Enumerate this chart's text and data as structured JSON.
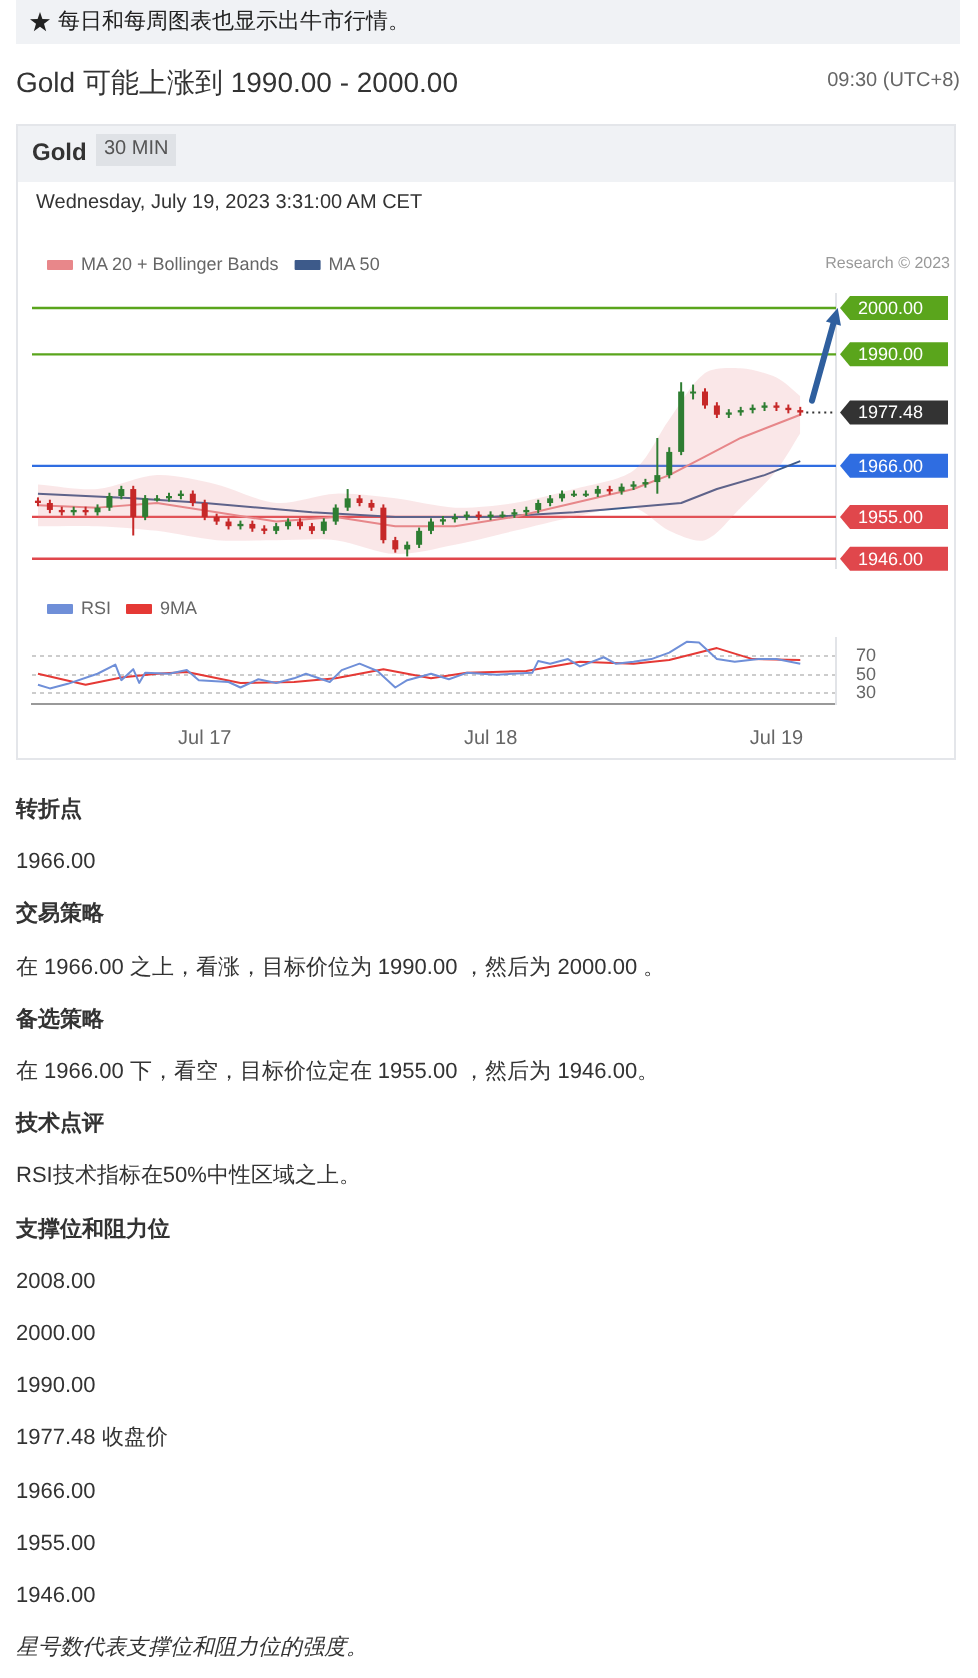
{
  "chart_data": [
    {
      "type": "candlestick",
      "title": "Gold 可能上涨到 1990.00 - 2000.00",
      "subtitle": "每日和每周图表也显示出牛市行情。",
      "annotations": [
        "09:30 (UTC+8)",
        "Gold",
        "30 MIN",
        "Wednesday, July 19, 2023 3:31:00 AM CET",
        "Research © 2023"
      ],
      "x": [
        "2023-07-16T10:00",
        "2023-07-16T11:00",
        "2023-07-16T12:00",
        "2023-07-16T13:00",
        "2023-07-16T14:00",
        "2023-07-16T15:00",
        "2023-07-16T16:00",
        "2023-07-16T17:00",
        "2023-07-16T18:00",
        "2023-07-16T19:00",
        "2023-07-16T20:00",
        "2023-07-16T21:00",
        "2023-07-16T22:00",
        "2023-07-16T23:00",
        "2023-07-17T00:00",
        "2023-07-17T01:00",
        "2023-07-17T02:00",
        "2023-07-17T03:00",
        "2023-07-17T04:00",
        "2023-07-17T05:00",
        "2023-07-17T06:00",
        "2023-07-17T07:00",
        "2023-07-17T08:00",
        "2023-07-17T09:00",
        "2023-07-17T10:00",
        "2023-07-17T11:00",
        "2023-07-17T12:00",
        "2023-07-17T13:00",
        "2023-07-17T14:00",
        "2023-07-17T15:00",
        "2023-07-17T16:00",
        "2023-07-17T17:00",
        "2023-07-17T18:00",
        "2023-07-17T19:00",
        "2023-07-17T20:00",
        "2023-07-17T21:00",
        "2023-07-17T22:00",
        "2023-07-17T23:00",
        "2023-07-18T00:00",
        "2023-07-18T01:00",
        "2023-07-18T02:00",
        "2023-07-18T03:00",
        "2023-07-18T04:00",
        "2023-07-18T05:00",
        "2023-07-18T06:00",
        "2023-07-18T07:00",
        "2023-07-18T08:00",
        "2023-07-18T09:00",
        "2023-07-18T10:00",
        "2023-07-18T11:00",
        "2023-07-18T12:00",
        "2023-07-18T13:00",
        "2023-07-18T14:00",
        "2023-07-18T15:00",
        "2023-07-18T16:00",
        "2023-07-18T17:00",
        "2023-07-18T18:00",
        "2023-07-18T19:00",
        "2023-07-18T20:00",
        "2023-07-18T21:00",
        "2023-07-18T22:00",
        "2023-07-18T23:00",
        "2023-07-19T00:00",
        "2023-07-19T01:00",
        "2023-07-19T02:00"
      ],
      "ohlc": [
        [
          1958.5,
          1959.2,
          1957.3,
          1958
        ],
        [
          1958,
          1958.7,
          1955.8,
          1956.5
        ],
        [
          1956.5,
          1957.2,
          1955.3,
          1956
        ],
        [
          1956,
          1957.2,
          1955.3,
          1956.5
        ],
        [
          1956.5,
          1957.2,
          1955.3,
          1956
        ],
        [
          1956,
          1957.7,
          1955.3,
          1957
        ],
        [
          1957,
          1960.2,
          1956.3,
          1959.5
        ],
        [
          1959.5,
          1961.7,
          1958.8,
          1961
        ],
        [
          1961,
          1961.7,
          1951,
          1955
        ],
        [
          1955,
          1959.7,
          1954.3,
          1959
        ],
        [
          1959,
          1959.7,
          1958.3,
          1959
        ],
        [
          1959,
          1960.2,
          1958.3,
          1959.5
        ],
        [
          1959.5,
          1960.7,
          1958.8,
          1960
        ],
        [
          1960,
          1960.7,
          1957.3,
          1958
        ],
        [
          1958,
          1958.7,
          1954.3,
          1955
        ],
        [
          1955,
          1955.7,
          1953.3,
          1954
        ],
        [
          1954,
          1954.7,
          1952.3,
          1953
        ],
        [
          1953,
          1954.2,
          1952.3,
          1953.5
        ],
        [
          1953.5,
          1954.2,
          1951.8,
          1952.5
        ],
        [
          1952.5,
          1953.2,
          1951.3,
          1952
        ],
        [
          1952,
          1953.7,
          1951.3,
          1953
        ],
        [
          1953,
          1954.7,
          1952.3,
          1954
        ],
        [
          1954,
          1954.7,
          1952.3,
          1953
        ],
        [
          1953,
          1953.7,
          1951.3,
          1952
        ],
        [
          1952,
          1954.7,
          1951.3,
          1954
        ],
        [
          1954,
          1957.7,
          1953.3,
          1957
        ],
        [
          1957,
          1961,
          1956.3,
          1959
        ],
        [
          1959,
          1959.7,
          1957.3,
          1958
        ],
        [
          1958,
          1958.7,
          1956.3,
          1957
        ],
        [
          1957,
          1957.7,
          1949.3,
          1950
        ],
        [
          1950,
          1950.7,
          1947.3,
          1948
        ],
        [
          1948,
          1949.7,
          1946.5,
          1949
        ],
        [
          1949,
          1952.7,
          1948.3,
          1952
        ],
        [
          1952,
          1954.7,
          1951.3,
          1954
        ],
        [
          1954,
          1955.2,
          1953.3,
          1954.5
        ],
        [
          1954.5,
          1955.7,
          1953.8,
          1955
        ],
        [
          1955,
          1956.2,
          1954.3,
          1955.5
        ],
        [
          1955.5,
          1956.2,
          1954.3,
          1955
        ],
        [
          1955,
          1956.2,
          1954.3,
          1955.5
        ],
        [
          1955.5,
          1956.2,
          1954.8,
          1955.5
        ],
        [
          1955.5,
          1956.7,
          1954.8,
          1956
        ],
        [
          1956,
          1957.2,
          1955.3,
          1956.5
        ],
        [
          1956.5,
          1958.7,
          1955.8,
          1958
        ],
        [
          1958,
          1959.7,
          1957.3,
          1959
        ],
        [
          1959,
          1960.7,
          1958.3,
          1960
        ],
        [
          1960,
          1960.7,
          1959.3,
          1960
        ],
        [
          1960,
          1960.7,
          1959.3,
          1960
        ],
        [
          1960,
          1961.7,
          1959.3,
          1961
        ],
        [
          1961,
          1961.7,
          1959.8,
          1960.5
        ],
        [
          1960.5,
          1962.2,
          1959.8,
          1961.5
        ],
        [
          1961.5,
          1962.7,
          1960.8,
          1962
        ],
        [
          1962,
          1963.2,
          1961.3,
          1962.5
        ],
        [
          1962.5,
          1972,
          1960,
          1964
        ],
        [
          1964,
          1970,
          1963.3,
          1969
        ],
        [
          1969,
          1984,
          1968.3,
          1982
        ],
        [
          1982,
          1983.5,
          1980.3,
          1982
        ],
        [
          1982,
          1982.7,
          1978.3,
          1979
        ],
        [
          1979,
          1979.7,
          1976.3,
          1977
        ],
        [
          1977,
          1978.2,
          1976.3,
          1977.5
        ],
        [
          1977.5,
          1978.7,
          1976.8,
          1978
        ],
        [
          1978,
          1979.2,
          1977.3,
          1978.5
        ],
        [
          1978.5,
          1979.7,
          1977.8,
          1979
        ],
        [
          1979,
          1979.7,
          1977.8,
          1978.5
        ],
        [
          1978.5,
          1979.2,
          1977.3,
          1978
        ],
        [
          1978,
          1978.7,
          1976.8,
          1977.48
        ]
      ],
      "colors": [
        "#c62828",
        "#c62828",
        "#c62828",
        "#2e7d32",
        "#c62828",
        "#2e7d32",
        "#2e7d32",
        "#2e7d32",
        "#c62828",
        "#2e7d32",
        "#2e7d32",
        "#2e7d32",
        "#2e7d32",
        "#c62828",
        "#c62828",
        "#c62828",
        "#c62828",
        "#2e7d32",
        "#c62828",
        "#c62828",
        "#2e7d32",
        "#2e7d32",
        "#c62828",
        "#c62828",
        "#2e7d32",
        "#2e7d32",
        "#2e7d32",
        "#c62828",
        "#c62828",
        "#c62828",
        "#c62828",
        "#2e7d32",
        "#2e7d32",
        "#2e7d32",
        "#2e7d32",
        "#2e7d32",
        "#2e7d32",
        "#c62828",
        "#2e7d32",
        "#2e7d32",
        "#2e7d32",
        "#2e7d32",
        "#2e7d32",
        "#2e7d32",
        "#2e7d32",
        "#2e7d32",
        "#2e7d32",
        "#2e7d32",
        "#c62828",
        "#2e7d32",
        "#2e7d32",
        "#2e7d32",
        "#2e7d32",
        "#2e7d32",
        "#2e7d32",
        "#2e7d32",
        "#c62828",
        "#c62828",
        "#2e7d32",
        "#2e7d32",
        "#2e7d32",
        "#2e7d32",
        "#c62828",
        "#c62828",
        "#c62828"
      ],
      "series": [
        {
          "name": "MA 20 + Bollinger Bands",
          "type": "line",
          "color": "#e8878a",
          "x": [
            "2023-07-16T10:00",
            "2023-07-16T15:00",
            "2023-07-16T20:00",
            "2023-07-17T01:00",
            "2023-07-17T06:00",
            "2023-07-17T11:00",
            "2023-07-17T16:00",
            "2023-07-17T21:00",
            "2023-07-18T02:00",
            "2023-07-18T07:00",
            "2023-07-18T12:00",
            "2023-07-18T15:00",
            "2023-07-18T18:00",
            "2023-07-18T21:00",
            "2023-07-19T00:00",
            "2023-07-19T02:00"
          ],
          "values": [
            1957.5,
            1957,
            1958,
            1956,
            1954,
            1955,
            1953,
            1953,
            1955,
            1958,
            1961,
            1964,
            1968,
            1972,
            1975,
            1977
          ],
          "upper": [
            1962,
            1961,
            1964,
            1962,
            1958,
            1960,
            1959,
            1957,
            1958,
            1961,
            1965,
            1976,
            1986,
            1987,
            1985,
            1981
          ],
          "lower": [
            1953,
            1953,
            1952,
            1950,
            1950,
            1950,
            1947,
            1949,
            1952,
            1955,
            1957,
            1952,
            1950,
            1957,
            1965,
            1973
          ]
        },
        {
          "name": "MA 50",
          "type": "line",
          "color": "#3d5a8a",
          "x": [
            "2023-07-16T10:00",
            "2023-07-16T18:00",
            "2023-07-17T00:00",
            "2023-07-17T09:00",
            "2023-07-17T16:00",
            "2023-07-18T00:00",
            "2023-07-18T07:00",
            "2023-07-18T16:00",
            "2023-07-18T19:00",
            "2023-07-18T23:00",
            "2023-07-19T02:00"
          ],
          "values": [
            1960,
            1959,
            1958,
            1956,
            1955,
            1955,
            1956,
            1958,
            1961,
            1964,
            1967
          ]
        }
      ],
      "ref_lines": [
        {
          "axis": "y",
          "value": 2000,
          "label": "2000.00",
          "color": "#5aa51c"
        },
        {
          "axis": "y",
          "value": 1990,
          "label": "1990.00",
          "color": "#5aa51c"
        },
        {
          "axis": "y",
          "value": 1977.48,
          "label": "1977.48",
          "color": "#333333",
          "line_style": "dotted"
        },
        {
          "axis": "y",
          "value": 1966,
          "label": "1966.00",
          "color": "#2f6de1"
        },
        {
          "axis": "y",
          "value": 1955,
          "label": "1955.00",
          "color": "#e0474c"
        },
        {
          "axis": "y",
          "value": 1946,
          "label": "1946.00",
          "color": "#e0474c"
        }
      ],
      "xlim": [
        "2023-07-16T09:30",
        "2023-07-19T05:00"
      ],
      "ylim": [
        1944,
        2003
      ],
      "tick_labels": false,
      "legend": "top left"
    },
    {
      "type": "line",
      "annotations": [
        "转折点",
        "1966.00",
        "交易策略",
        "在 1966.00 之上，看涨，目标价位为 1990.00 ，然后为 2000.00 。",
        "备选策略",
        "在 1966.00 下，看空，目标价位定在 1955.00 ，然后为 1946.00。",
        "技术点评",
        "RSI技术指标在50%中性区域之上。",
        "支撑位和阻力位",
        "2008.00",
        "2000.00",
        "1990.00",
        "1977.48 收盘价",
        "1966.00",
        "1955.00",
        "1946.00",
        "星号数代表支撑位和阻力位的强度。"
      ],
      "series": [
        {
          "name": "RSI",
          "color": "#6f8fd8",
          "x": [
            "2023-07-16T10:00",
            "2023-07-16T11:00",
            "2023-07-16T12:30",
            "2023-07-16T15:00",
            "2023-07-16T16:30",
            "2023-07-16T17:00",
            "2023-07-16T18:00",
            "2023-07-16T18:30",
            "2023-07-16T19:00",
            "2023-07-16T21:00",
            "2023-07-16T22:30",
            "2023-07-16T23:30",
            "2023-07-17T02:00",
            "2023-07-17T03:00",
            "2023-07-17T04:30",
            "2023-07-17T06:00",
            "2023-07-17T07:30",
            "2023-07-17T08:30",
            "2023-07-17T10:30",
            "2023-07-17T11:30",
            "2023-07-17T13:00",
            "2023-07-17T14:30",
            "2023-07-17T16:00",
            "2023-07-17T17:00",
            "2023-07-17T19:00",
            "2023-07-17T20:30",
            "2023-07-17T22:00",
            "2023-07-18T00:30",
            "2023-07-18T03:30",
            "2023-07-18T04:00",
            "2023-07-18T05:00",
            "2023-07-18T06:30",
            "2023-07-18T07:30",
            "2023-07-18T09:30",
            "2023-07-18T10:30",
            "2023-07-18T12:00",
            "2023-07-18T13:30",
            "2023-07-18T15:00",
            "2023-07-18T16:30",
            "2023-07-18T17:30",
            "2023-07-18T19:00",
            "2023-07-18T20:30",
            "2023-07-18T22:30",
            "2023-07-19T00:00",
            "2023-07-19T02:00"
          ],
          "values": [
            39,
            35,
            40,
            51,
            61,
            44,
            56,
            41,
            52,
            51,
            55,
            44,
            42,
            36,
            45,
            41,
            46,
            51,
            42,
            55,
            62,
            54,
            36,
            44,
            51,
            45,
            52,
            50,
            52,
            65,
            62,
            67,
            59,
            69,
            62,
            64,
            67,
            74,
            86,
            85,
            67,
            64,
            67,
            67,
            62
          ]
        },
        {
          "name": "9MA",
          "color": "#e53935",
          "x": [
            "2023-07-16T10:00",
            "2023-07-16T14:00",
            "2023-07-16T17:00",
            "2023-07-16T20:00",
            "2023-07-16T22:30",
            "2023-07-17T03:00",
            "2023-07-17T07:30",
            "2023-07-17T11:00",
            "2023-07-17T15:00",
            "2023-07-17T19:00",
            "2023-07-17T22:00",
            "2023-07-18T03:00",
            "2023-07-18T07:30",
            "2023-07-18T12:00",
            "2023-07-18T15:00",
            "2023-07-18T19:00",
            "2023-07-18T22:00",
            "2023-07-19T02:00"
          ],
          "values": [
            51,
            39,
            47,
            51,
            53,
            41,
            42,
            46,
            56,
            46,
            52,
            54,
            64,
            62,
            66,
            79,
            67,
            66
          ]
        }
      ],
      "xlim": [
        "2023-07-16T09:30",
        "2023-07-19T05:00"
      ],
      "xticks": [
        {
          "value": "2023-07-17",
          "label": "Jul 17"
        },
        {
          "value": "2023-07-18",
          "label": "Jul 18"
        },
        {
          "value": "2023-07-19",
          "label": "Jul 19"
        }
      ],
      "ylim": [
        18,
        90
      ],
      "yticks": [
        30,
        50,
        70
      ],
      "grid": "y",
      "legend": "top left"
    }
  ]
}
